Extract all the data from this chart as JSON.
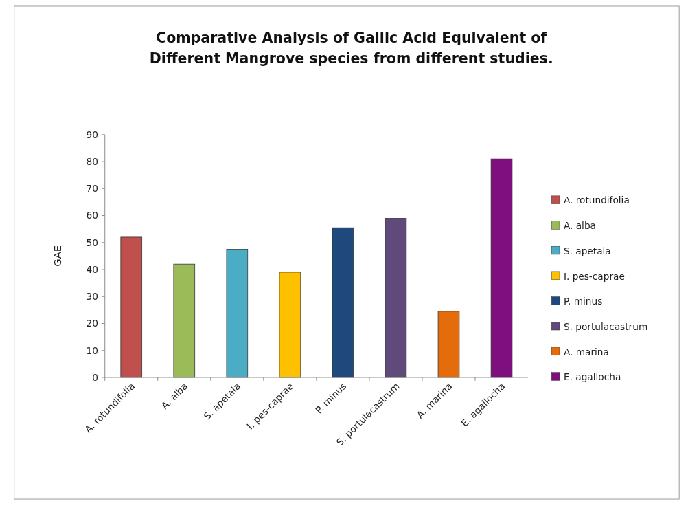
{
  "chart_data": {
    "type": "bar",
    "title": "Comparative Analysis of Gallic Acid Equivalent of Different Mangrove species from different studies.",
    "ylabel": "GAE",
    "categories": [
      "A. rotundifolia",
      "A. alba",
      "S. apetala",
      "I. pes-caprae",
      "P. minus",
      "S. portulacastrum",
      "A. marina",
      "E. agallocha"
    ],
    "series": [
      {
        "name": "A. rotundifolia",
        "color": "#c0504d",
        "values": [
          52,
          null,
          null,
          null,
          null,
          null,
          null,
          null
        ]
      },
      {
        "name": "A. alba",
        "color": "#9bbb59",
        "values": [
          null,
          42,
          null,
          null,
          null,
          null,
          null,
          null
        ]
      },
      {
        "name": "S. apetala",
        "color": "#4bacc6",
        "values": [
          null,
          null,
          47.5,
          null,
          null,
          null,
          null,
          null
        ]
      },
      {
        "name": "I. pes-caprae",
        "color": "#ffc000",
        "values": [
          null,
          null,
          null,
          39,
          null,
          null,
          null,
          null
        ]
      },
      {
        "name": "P. minus",
        "color": "#1f497d",
        "values": [
          null,
          null,
          null,
          null,
          55.5,
          null,
          null,
          null
        ]
      },
      {
        "name": "S. portulacastrum",
        "color": "#604a7b",
        "values": [
          null,
          null,
          null,
          null,
          null,
          59,
          null,
          null
        ]
      },
      {
        "name": "A. marina",
        "color": "#e46c0a",
        "values": [
          null,
          null,
          null,
          null,
          null,
          null,
          24.5,
          null
        ]
      },
      {
        "name": "E. agallocha",
        "color": "#7f0f7e",
        "values": [
          null,
          null,
          null,
          null,
          null,
          null,
          null,
          81
        ]
      }
    ],
    "ylim": [
      0,
      90
    ],
    "yticks": [
      0,
      10,
      20,
      30,
      40,
      50,
      60,
      70,
      80,
      90
    ],
    "legend": "right"
  }
}
